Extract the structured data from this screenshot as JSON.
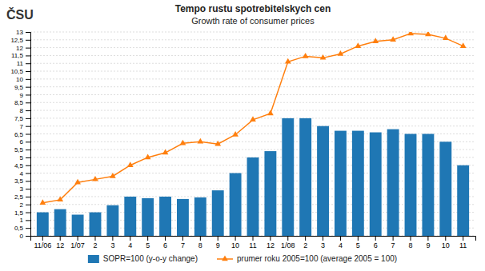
{
  "chart_data": {
    "type": "bar",
    "title": "Tempo rustu spotrebitelskych cen",
    "subtitle": "Growth rate of consumer prices",
    "annotations": [
      "ČSU"
    ],
    "categories": [
      "11/06",
      "12",
      "1/07",
      "2",
      "3",
      "4",
      "5",
      "6",
      "7",
      "8",
      "9",
      "10",
      "11",
      "12",
      "1/08",
      "2",
      "3",
      "4",
      "5",
      "6",
      "7",
      "8",
      "9",
      "10",
      "11"
    ],
    "series": [
      {
        "name": "SOPR=100 (y-o-y change)",
        "type": "bar",
        "values": [
          1.5,
          1.7,
          1.35,
          1.5,
          1.95,
          2.5,
          2.4,
          2.5,
          2.35,
          2.45,
          2.9,
          4.0,
          5.0,
          5.4,
          7.5,
          7.5,
          7.0,
          6.7,
          6.7,
          6.6,
          6.8,
          6.5,
          6.5,
          6.0,
          4.5
        ]
      },
      {
        "name": "prumer roku 2005=100 (average 2005 = 100)",
        "type": "line",
        "marker": "triangle",
        "values": [
          2.1,
          2.3,
          3.4,
          3.6,
          3.8,
          4.5,
          5.0,
          5.3,
          5.9,
          6.0,
          5.85,
          6.45,
          7.4,
          7.8,
          11.1,
          11.45,
          11.35,
          11.6,
          12.1,
          12.4,
          12.5,
          12.9,
          12.85,
          12.6,
          12.1
        ]
      }
    ],
    "ylim": [
      0,
      13
    ],
    "yticks": [
      0,
      {
        "value": 0.5,
        "label": "0,5"
      },
      1,
      {
        "value": 1.5,
        "label": "1,5"
      },
      2,
      {
        "value": 2.5,
        "label": "2,5"
      },
      3,
      {
        "value": 3.5,
        "label": "3,5"
      },
      4,
      {
        "value": 4.5,
        "label": "4,5"
      },
      5,
      {
        "value": 5.5,
        "label": "5,5"
      },
      6,
      {
        "value": 6.5,
        "label": "6,5"
      },
      7,
      {
        "value": 7.5,
        "label": "7,5"
      },
      8,
      {
        "value": 8.5,
        "label": "8,5"
      },
      9,
      {
        "value": 9.5,
        "label": "9,5"
      },
      10,
      {
        "value": 10.5,
        "label": "10,5"
      },
      11,
      {
        "value": 11.5,
        "label": "11,5"
      },
      12,
      {
        "value": 12.5,
        "label": "12,5"
      },
      13
    ],
    "grid": true,
    "legend": "bottom"
  }
}
